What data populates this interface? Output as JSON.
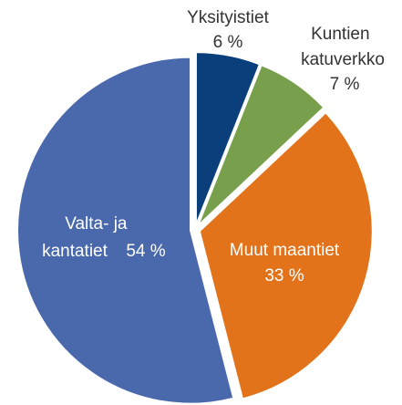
{
  "chart_data": {
    "type": "pie",
    "categories": [
      "Yksityistiet",
      "Kuntien katuverkko",
      "Muut maantiet",
      "Valta- ja kantatiet"
    ],
    "values": [
      6,
      7,
      33,
      54
    ],
    "value_labels": [
      "6 %",
      "7 %",
      "33 %",
      "54 %"
    ],
    "colors": [
      "#0b3f7c",
      "#78a04c",
      "#e2731a",
      "#4a69ad"
    ]
  }
}
